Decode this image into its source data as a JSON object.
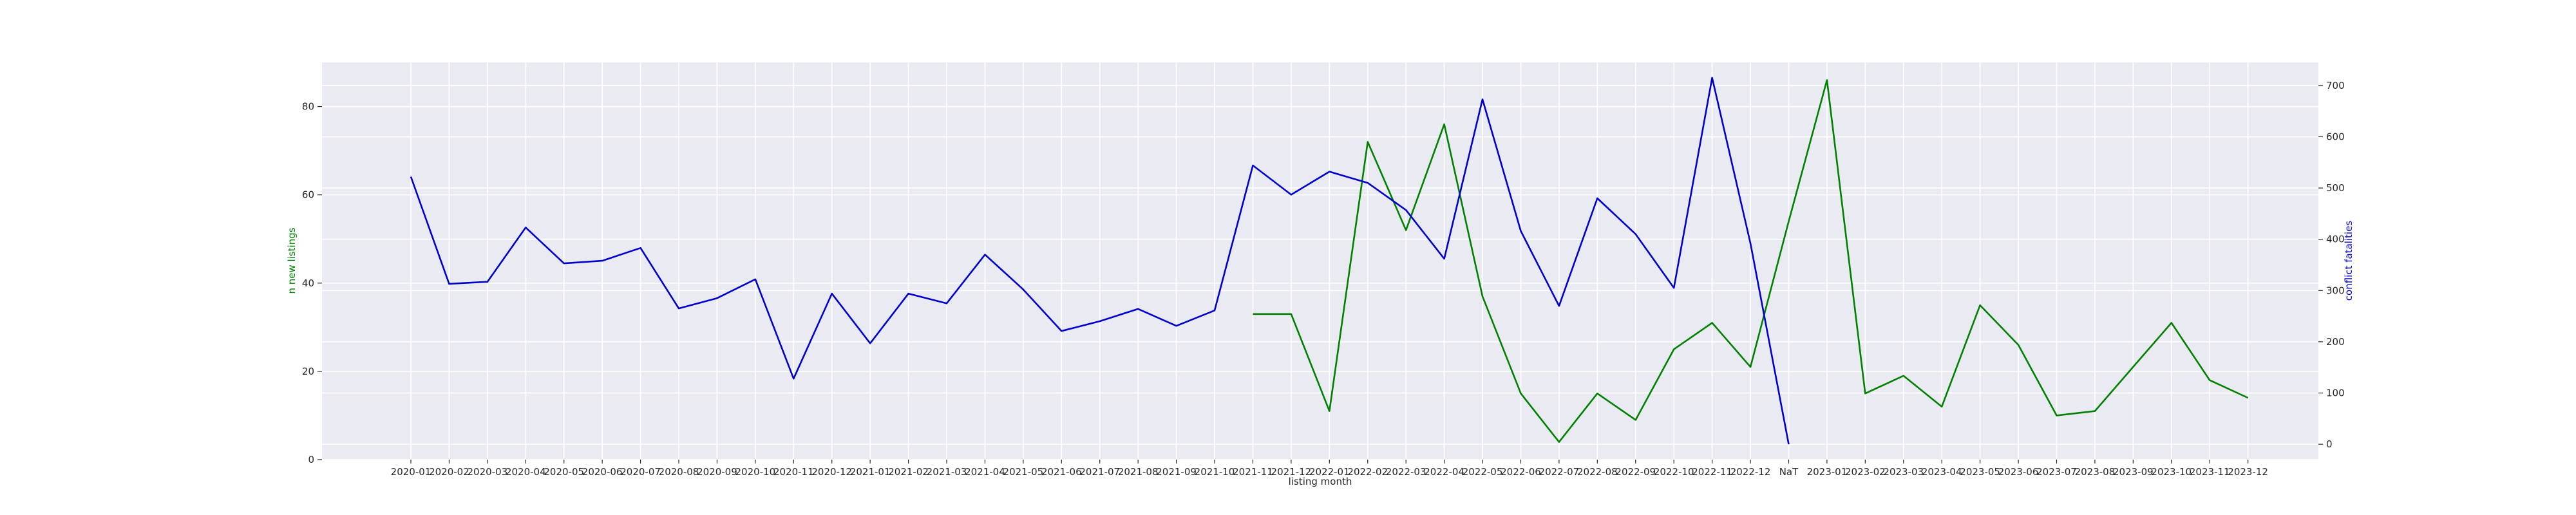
{
  "chart_data": {
    "type": "line",
    "xlabel": "listing month",
    "ylabel_left": "n new listings",
    "ylabel_right": "conflict fatalities",
    "colors": {
      "left_series": "#008000",
      "right_series": "#0000cc",
      "plot_bg": "#eaeaf2",
      "grid": "#ffffff"
    },
    "grid": true,
    "categories": [
      "2020-01",
      "2020-02",
      "2020-03",
      "2020-04",
      "2020-05",
      "2020-06",
      "2020-07",
      "2020-08",
      "2020-09",
      "2020-10",
      "2020-11",
      "2020-12",
      "2021-01",
      "2021-02",
      "2021-03",
      "2021-04",
      "2021-05",
      "2021-06",
      "2021-07",
      "2021-08",
      "2021-09",
      "2021-10",
      "2021-11",
      "2021-12",
      "2022-01",
      "2022-02",
      "2022-03",
      "2022-04",
      "2022-05",
      "2022-06",
      "2022-07",
      "2022-08",
      "2022-09",
      "2022-10",
      "2022-11",
      "2022-12",
      "NaT",
      "2023-01",
      "2023-02",
      "2023-03",
      "2023-04",
      "2023-05",
      "2023-06",
      "2023-07",
      "2023-08",
      "2023-09",
      "2023-10",
      "2023-11",
      "2023-12"
    ],
    "left_axis": {
      "ylim": [
        0,
        90
      ],
      "ticks": [
        0,
        20,
        40,
        60,
        80
      ]
    },
    "right_axis": {
      "ylim": [
        -30,
        745
      ],
      "ticks": [
        0,
        100,
        200,
        300,
        400,
        500,
        600,
        700
      ]
    },
    "series": [
      {
        "axis": "left",
        "values": [
          null,
          null,
          null,
          null,
          null,
          null,
          null,
          null,
          null,
          null,
          null,
          null,
          null,
          null,
          null,
          null,
          null,
          null,
          null,
          null,
          null,
          null,
          33,
          33,
          11,
          72,
          52,
          76,
          37,
          15,
          4,
          15,
          9,
          25,
          31,
          21,
          54,
          86,
          15,
          19,
          12,
          35,
          26,
          10,
          11,
          21,
          31,
          18,
          14
        ]
      },
      {
        "axis": "right",
        "values": [
          522,
          313,
          317,
          423,
          353,
          358,
          383,
          265,
          285,
          322,
          128,
          294,
          197,
          294,
          275,
          370,
          302,
          221,
          240,
          264,
          231,
          261,
          544,
          487,
          532,
          510,
          457,
          362,
          673,
          416,
          270,
          480,
          410,
          305,
          715,
          392,
          0,
          null,
          null,
          null,
          null,
          null,
          null,
          null,
          null,
          null,
          null,
          null,
          null
        ]
      }
    ]
  }
}
